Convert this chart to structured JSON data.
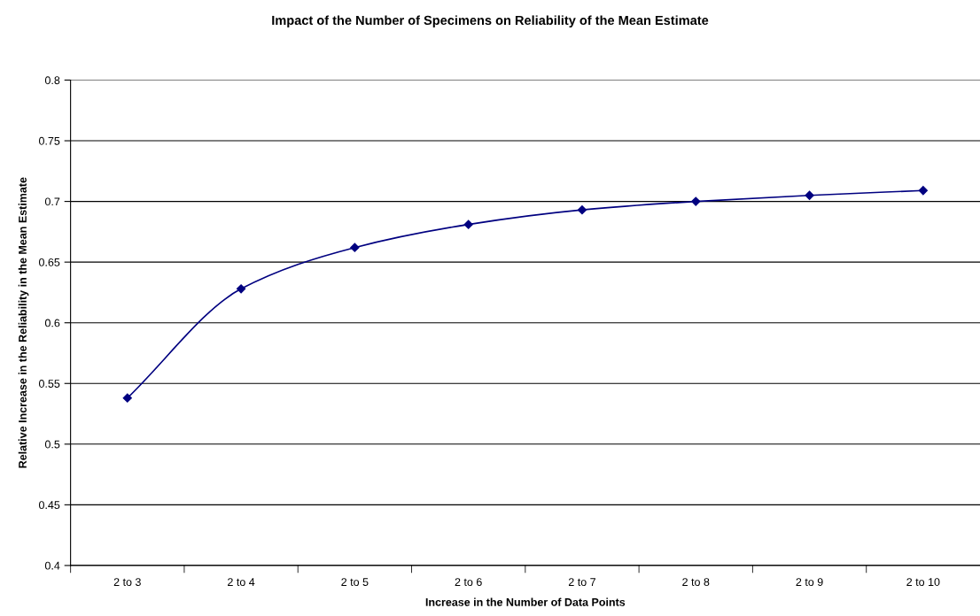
{
  "chart_data": {
    "type": "line",
    "title": "Impact of the Number of Specimens on Reliability of the Mean Estimate",
    "xlabel": "Increase in the Number of Data Points",
    "ylabel": "Relative Increase in the Reliability in the Mean Estimate",
    "categories": [
      "2 to 3",
      "2 to 4",
      "2 to 5",
      "2 to 6",
      "2 to 7",
      "2 to 8",
      "2 to 9",
      "2 to 10"
    ],
    "series": [
      {
        "color": "#000080",
        "values": [
          0.538,
          0.628,
          0.662,
          0.681,
          0.693,
          0.7,
          0.705,
          0.709
        ]
      }
    ],
    "ylim": [
      0.4,
      0.8
    ],
    "yticks": [
      0.4,
      0.45,
      0.5,
      0.55,
      0.6,
      0.65,
      0.7,
      0.75,
      0.8
    ],
    "grid": "y",
    "marker": "diamond",
    "line_style": "solid"
  }
}
